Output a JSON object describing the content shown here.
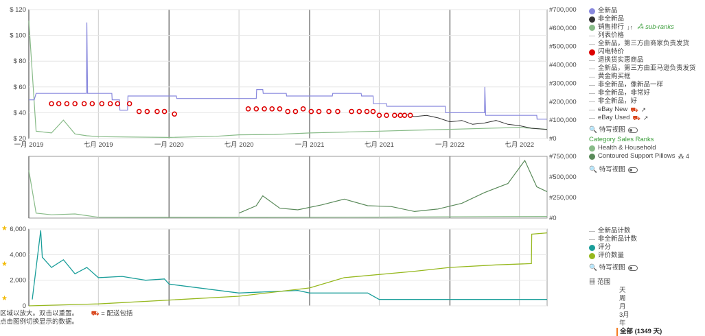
{
  "chart_data": [
    {
      "type": "line",
      "title": "",
      "x_ticks": [
        "一月 2019",
        "七月 2019",
        "一月 2020",
        "七月 2020",
        "一月 2021",
        "七月 2021",
        "一月 2022",
        "七月 2022"
      ],
      "x_range": [
        "2019-01-01",
        "2022-09-11"
      ],
      "y_left_ticks": [
        "$ 20",
        "$ 40",
        "$ 60",
        "$ 80",
        "$ 100",
        "$ 120"
      ],
      "y_left_range": [
        20,
        120
      ],
      "y_right_ticks": [
        "#0",
        "#100,000",
        "#200,000",
        "#300,000",
        "#400,000",
        "#500,000",
        "#600,000",
        "#700,000"
      ],
      "y_right_range": [
        0,
        700000
      ],
      "series": [
        {
          "name": "全新品",
          "color": "#8888dd",
          "axis": "left",
          "points": [
            [
              "2019-01-01",
              50
            ],
            [
              "2019-01-15",
              50
            ],
            [
              "2019-01-20",
              55
            ],
            [
              "2019-03-15",
              55
            ],
            [
              "2019-04-01",
              55
            ],
            [
              "2019-05-31",
              55
            ],
            [
              "2019-06-01",
              110
            ],
            [
              "2019-06-03",
              55
            ],
            [
              "2019-08-05",
              55
            ],
            [
              "2019-08-06",
              50
            ],
            [
              "2019-08-25",
              50
            ],
            [
              "2019-08-26",
              42
            ],
            [
              "2019-09-15",
              42
            ],
            [
              "2019-09-16",
              53
            ],
            [
              "2020-01-20",
              53
            ],
            [
              "2020-01-21",
              51
            ],
            [
              "2020-08-15",
              51
            ],
            [
              "2020-08-16",
              58
            ],
            [
              "2020-09-01",
              58
            ],
            [
              "2020-09-02",
              55
            ],
            [
              "2020-11-01",
              55
            ],
            [
              "2020-11-02",
              53
            ],
            [
              "2021-03-01",
              53
            ],
            [
              "2021-03-02",
              55
            ],
            [
              "2021-05-15",
              55
            ],
            [
              "2021-05-16",
              53
            ],
            [
              "2021-06-15",
              53
            ],
            [
              "2021-06-16",
              47
            ],
            [
              "2021-07-20",
              47
            ],
            [
              "2021-07-21",
              45
            ],
            [
              "2021-12-20",
              45
            ],
            [
              "2021-12-21",
              40
            ],
            [
              "2022-04-01",
              40
            ],
            [
              "2022-04-02",
              60
            ],
            [
              "2022-04-04",
              38
            ],
            [
              "2022-08-15",
              38
            ],
            [
              "2022-08-16",
              35
            ],
            [
              "2022-09-11",
              35
            ]
          ]
        },
        {
          "name": "非全新品",
          "color": "#333333",
          "axis": "left",
          "points": [
            [
              "2021-09-01",
              39
            ],
            [
              "2021-10-01",
              37
            ],
            [
              "2021-11-01",
              38
            ],
            [
              "2021-12-01",
              36
            ],
            [
              "2022-01-01",
              33
            ],
            [
              "2022-02-01",
              34
            ],
            [
              "2022-03-01",
              31
            ],
            [
              "2022-04-01",
              32
            ],
            [
              "2022-05-01",
              34
            ],
            [
              "2022-06-01",
              31
            ],
            [
              "2022-07-01",
              30
            ],
            [
              "2022-08-01",
              28
            ],
            [
              "2022-09-11",
              27
            ]
          ]
        },
        {
          "name": "闪电特价",
          "color": "#dd0000",
          "axis": "left",
          "points": [
            [
              "2019-03-01",
              47
            ],
            [
              "2019-03-20",
              47
            ],
            [
              "2019-04-10",
              47
            ],
            [
              "2019-05-01",
              47
            ],
            [
              "2019-05-25",
              47
            ],
            [
              "2019-06-15",
              47
            ],
            [
              "2019-07-10",
              47
            ],
            [
              "2019-08-01",
              47
            ],
            [
              "2019-08-20",
              47
            ],
            [
              "2019-09-20",
              47
            ],
            [
              "2019-10-15",
              41
            ],
            [
              "2019-11-05",
              41
            ],
            [
              "2019-12-01",
              41
            ],
            [
              "2019-12-20",
              41
            ],
            [
              "2020-01-15",
              39
            ],
            [
              "2020-07-25",
              43
            ],
            [
              "2020-08-15",
              43
            ],
            [
              "2020-09-05",
              43
            ],
            [
              "2020-09-25",
              43
            ],
            [
              "2020-10-15",
              43
            ],
            [
              "2020-11-05",
              41
            ],
            [
              "2020-11-25",
              41
            ],
            [
              "2020-12-15",
              43
            ],
            [
              "2021-01-05",
              41
            ],
            [
              "2021-01-25",
              41
            ],
            [
              "2021-02-20",
              41
            ],
            [
              "2021-03-15",
              41
            ],
            [
              "2021-04-20",
              41
            ],
            [
              "2021-05-10",
              41
            ],
            [
              "2021-05-30",
              41
            ],
            [
              "2021-06-15",
              41
            ],
            [
              "2021-07-01",
              38
            ],
            [
              "2021-07-20",
              38
            ],
            [
              "2021-08-10",
              38
            ],
            [
              "2021-08-25",
              38
            ],
            [
              "2021-09-05",
              38
            ],
            [
              "2021-09-20",
              38
            ]
          ]
        },
        {
          "name": "销售排行",
          "color": "#88bb88",
          "axis": "right",
          "points": [
            [
              "2019-01-01",
              640000
            ],
            [
              "2019-01-20",
              40000
            ],
            [
              "2019-03-01",
              30000
            ],
            [
              "2019-04-01",
              100000
            ],
            [
              "2019-05-01",
              25000
            ],
            [
              "2019-06-01",
              15000
            ],
            [
              "2019-07-01",
              10000
            ],
            [
              "2019-10-01",
              8000
            ],
            [
              "2020-01-01",
              6000
            ],
            [
              "2020-05-01",
              12000
            ],
            [
              "2020-07-01",
              20000
            ],
            [
              "2020-10-01",
              22000
            ],
            [
              "2021-01-01",
              30000
            ],
            [
              "2021-04-01",
              35000
            ],
            [
              "2021-07-01",
              40000
            ],
            [
              "2021-10-01",
              45000
            ],
            [
              "2022-01-01",
              50000
            ],
            [
              "2022-04-01",
              55000
            ],
            [
              "2022-07-01",
              60000
            ],
            [
              "2022-09-11",
              50000
            ]
          ]
        }
      ]
    },
    {
      "type": "line",
      "title": "",
      "y_right_ticks": [
        "#0",
        "#250,000",
        "#500,000",
        "#750,000"
      ],
      "y_right_range": [
        0,
        750000
      ],
      "series": [
        {
          "name": "Health & Household",
          "color": "#88bb88",
          "points": [
            [
              "2019-01-01",
              580000
            ],
            [
              "2019-01-20",
              60000
            ],
            [
              "2019-03-01",
              40000
            ],
            [
              "2019-05-01",
              50000
            ],
            [
              "2019-07-01",
              10000
            ],
            [
              "2020-07-01",
              8000
            ],
            [
              "2021-07-01",
              12000
            ],
            [
              "2022-09-11",
              20000
            ]
          ]
        },
        {
          "name": "Contoured Support Pillows",
          "color": "#5a8a5a",
          "points": [
            [
              "2020-07-01",
              60000
            ],
            [
              "2020-08-15",
              150000
            ],
            [
              "2020-09-01",
              270000
            ],
            [
              "2020-10-15",
              120000
            ],
            [
              "2020-12-01",
              100000
            ],
            [
              "2021-02-01",
              160000
            ],
            [
              "2021-04-01",
              230000
            ],
            [
              "2021-06-01",
              150000
            ],
            [
              "2021-08-01",
              140000
            ],
            [
              "2021-10-01",
              80000
            ],
            [
              "2021-12-01",
              110000
            ],
            [
              "2022-02-01",
              180000
            ],
            [
              "2022-04-01",
              310000
            ],
            [
              "2022-06-01",
              420000
            ],
            [
              "2022-07-15",
              700000
            ],
            [
              "2022-08-15",
              380000
            ],
            [
              "2022-09-11",
              320000
            ]
          ]
        }
      ]
    },
    {
      "type": "line",
      "title": "",
      "y_left_ticks": [
        "0",
        "2,000",
        "4,000",
        "6,000"
      ],
      "y_left_range": [
        0,
        6000
      ],
      "series": [
        {
          "name": "评分",
          "color": "#1a9e9a",
          "points": [
            [
              "2019-01-10",
              500
            ],
            [
              "2019-02-01",
              5900
            ],
            [
              "2019-02-05",
              3800
            ],
            [
              "2019-03-01",
              3000
            ],
            [
              "2019-04-01",
              3600
            ],
            [
              "2019-05-01",
              2500
            ],
            [
              "2019-06-01",
              3000
            ],
            [
              "2019-07-01",
              2200
            ],
            [
              "2019-09-01",
              2300
            ],
            [
              "2019-11-01",
              2000
            ],
            [
              "2019-12-20",
              2100
            ],
            [
              "2020-01-01",
              1700
            ],
            [
              "2020-07-01",
              1000
            ],
            [
              "2020-12-01",
              1200
            ],
            [
              "2021-01-01",
              1000
            ],
            [
              "2021-06-01",
              1000
            ],
            [
              "2021-07-01",
              500
            ],
            [
              "2022-09-11",
              500
            ]
          ]
        },
        {
          "name": "评价数量",
          "color": "#96b81e",
          "points": [
            [
              "2019-01-01",
              0
            ],
            [
              "2019-07-01",
              150
            ],
            [
              "2020-01-01",
              450
            ],
            [
              "2020-07-01",
              750
            ],
            [
              "2021-01-01",
              1400
            ],
            [
              "2021-04-01",
              2200
            ],
            [
              "2021-10-01",
              2700
            ],
            [
              "2022-01-01",
              3000
            ],
            [
              "2022-05-01",
              3200
            ],
            [
              "2022-08-01",
              3300
            ],
            [
              "2022-08-02",
              5600
            ],
            [
              "2022-09-11",
              5700
            ]
          ]
        }
      ]
    }
  ],
  "legend_main": [
    {
      "label": "全新品",
      "marker": "dot",
      "color": "#8888dd"
    },
    {
      "label": "非全新品",
      "marker": "dot",
      "color": "#333333"
    },
    {
      "label": "销售排行",
      "marker": "dot",
      "color": "#88bb88",
      "sub": "sub-ranks"
    },
    {
      "label": "列表价格",
      "marker": "dash",
      "color": "#bbbbbb"
    },
    {
      "label": "全新品，第三方由商家负责发货",
      "marker": "dash",
      "color": "#bbbbbb"
    },
    {
      "label": "闪电特价",
      "marker": "dot",
      "color": "#dd0000"
    },
    {
      "label": "退换货实惠商品",
      "marker": "dash",
      "color": "#bbbbbb"
    },
    {
      "label": "全新品，第三方由亚马逊负责发货",
      "marker": "dash",
      "color": "#bbbbbb"
    },
    {
      "label": "黄金购买框",
      "marker": "dash",
      "color": "#bbbbbb"
    },
    {
      "label": "非全新品，像新品一样",
      "marker": "dash",
      "color": "#bbbbbb"
    },
    {
      "label": "非全新品，非常好",
      "marker": "dash",
      "color": "#bbbbbb"
    },
    {
      "label": "非全新品，好",
      "marker": "dash",
      "color": "#bbbbbb"
    },
    {
      "label": "eBay New",
      "marker": "dash",
      "color": "#bbbbbb"
    },
    {
      "label": "eBay Used",
      "marker": "dash",
      "color": "#bbbbbb"
    }
  ],
  "close_view_label": "特写视图",
  "category_ranks_title": "Category Sales Ranks",
  "legend_ranks": [
    {
      "label": "Health & Household",
      "marker": "dot",
      "color": "#88bb88"
    },
    {
      "label": "Contoured Support Pillows",
      "marker": "dot",
      "color": "#5a8a5a",
      "suffix": "4"
    }
  ],
  "legend_ratings": [
    {
      "label": "全新品计数",
      "marker": "dash",
      "color": "#bbbbbb"
    },
    {
      "label": "非全新品计数",
      "marker": "dash",
      "color": "#bbbbbb"
    },
    {
      "label": "评分",
      "marker": "dot",
      "color": "#1a9e9a"
    },
    {
      "label": "评价数量",
      "marker": "dot",
      "color": "#96b81e"
    }
  ],
  "range": {
    "label": "范围",
    "options": [
      "天",
      "周",
      "月",
      "3月",
      "年"
    ],
    "selected": "全部 (1349 天)"
  },
  "footer": {
    "line1a": "区域以放大。双击以重置。",
    "line1b": "= 配送包括",
    "line2": "点击图例切换显示的数据。"
  }
}
